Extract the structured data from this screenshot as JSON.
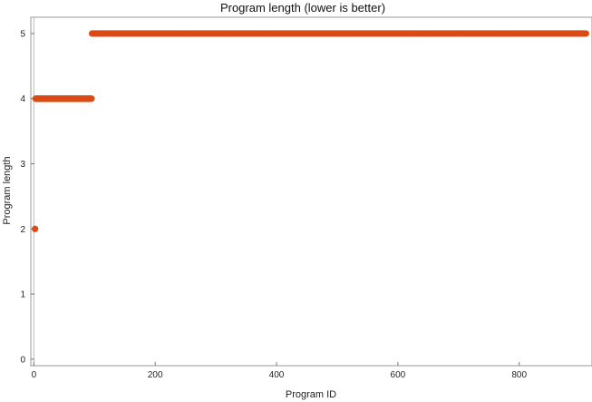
{
  "chart_data": {
    "type": "scatter",
    "title": "Program length (lower is better)",
    "xlabel": "Program ID",
    "ylabel": "Program length",
    "xlim": [
      -5,
      920
    ],
    "ylim": [
      -0.1,
      5.25
    ],
    "xticks": [
      0,
      200,
      400,
      600,
      800
    ],
    "yticks": [
      0,
      1,
      2,
      3,
      4,
      5
    ],
    "grid": false,
    "marker_color": "#dc4a14",
    "frame_color": "#999999",
    "zero_line_color": "#bbbbbb",
    "series": [
      {
        "segments": [
          {
            "x_start": 2,
            "x_end": 2,
            "y": 2
          },
          {
            "x_start": 3,
            "x_end": 95,
            "y": 4
          },
          {
            "x_start": 96,
            "x_end": 910,
            "y": 5
          }
        ]
      }
    ]
  }
}
